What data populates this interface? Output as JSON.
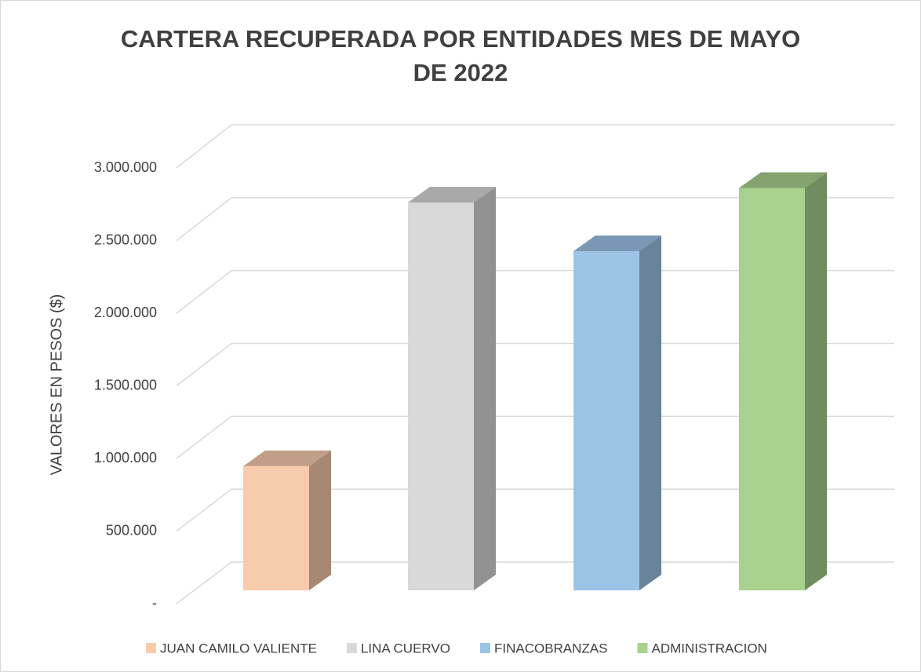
{
  "chart_data": {
    "type": "bar3d",
    "title": "CARTERA RECUPERADA POR ENTIDADES MES DE MAYO DE 2022",
    "y_axis_label": "VALORES EN PESOS ($)",
    "categories": [
      "JUAN CAMILO VALIENTE",
      "LINA CUERVO",
      "FINACOBRANZAS",
      "ADMINISTRACION"
    ],
    "values": [
      855000,
      2670000,
      2335000,
      2770000
    ],
    "colors": [
      "#f8cbad",
      "#d9d9d9",
      "#9dc3e6",
      "#a9d18e"
    ],
    "ylim": [
      0,
      3000000
    ],
    "yticks": [
      {
        "value": 0,
        "label": "-"
      },
      {
        "value": 500000,
        "label": "500.000"
      },
      {
        "value": 1000000,
        "label": "1.000.000"
      },
      {
        "value": 1500000,
        "label": "1.500.000"
      },
      {
        "value": 2000000,
        "label": "2.000.000"
      },
      {
        "value": 2500000,
        "label": "2.500.000"
      },
      {
        "value": 3000000,
        "label": "3.000.000"
      }
    ],
    "grid": true,
    "legend": "bottom"
  }
}
